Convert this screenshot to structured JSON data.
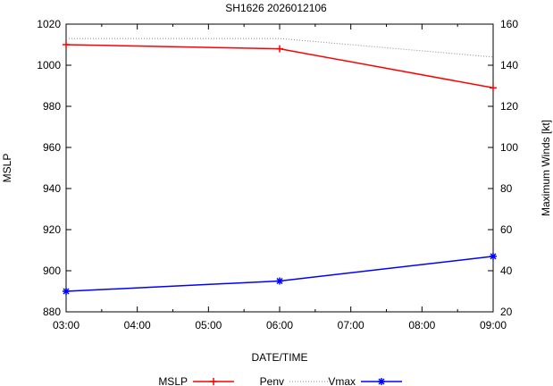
{
  "chart_data": {
    "type": "line",
    "title": "SH1626 2026012106",
    "xlabel": "DATE/TIME",
    "ylabel": "MSLP",
    "y2label": "Maximum Winds [kt]",
    "x_ticks": [
      "03:00",
      "04:00",
      "05:00",
      "06:00",
      "07:00",
      "08:00",
      "09:00"
    ],
    "x_hours": [
      3,
      4,
      5,
      6,
      7,
      8,
      9
    ],
    "ylim": [
      880,
      1020
    ],
    "y_ticks": [
      880,
      900,
      920,
      940,
      960,
      980,
      1000,
      1020
    ],
    "y2lim": [
      20,
      160
    ],
    "y2_ticks": [
      20,
      40,
      60,
      80,
      100,
      120,
      140,
      160
    ],
    "series": [
      {
        "name": "MSLP",
        "axis": "left",
        "x": [
          3,
          6,
          9
        ],
        "y": [
          1010,
          1008,
          989
        ],
        "color": "#ff0000",
        "style": "solid",
        "marker": "plus"
      },
      {
        "name": "Penv",
        "axis": "left",
        "x": [
          3,
          6,
          9
        ],
        "y": [
          1013,
          1013,
          1004
        ],
        "color": "#888888",
        "style": "dotted",
        "marker": "none"
      },
      {
        "name": "Vmax",
        "axis": "right",
        "x": [
          3,
          6,
          9
        ],
        "y": [
          30,
          35,
          47
        ],
        "color": "#0000ff",
        "style": "solid",
        "marker": "star"
      }
    ],
    "legend": {
      "placement": "bottom"
    },
    "grid": false
  }
}
